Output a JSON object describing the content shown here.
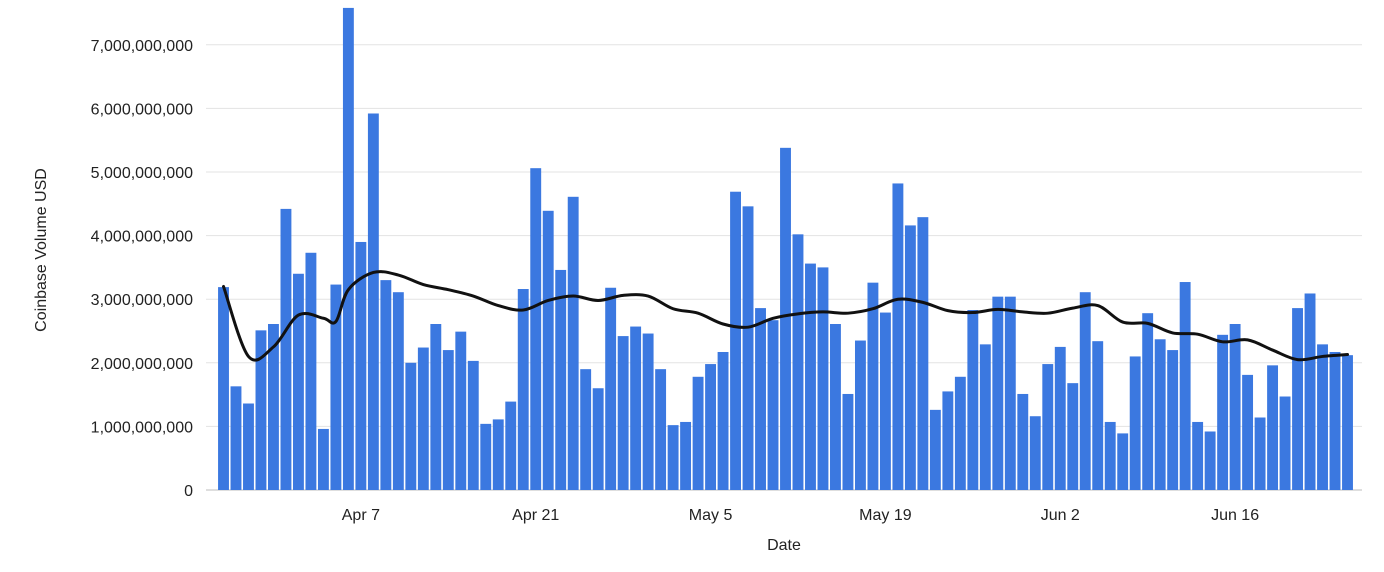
{
  "chart_data": {
    "type": "bar",
    "xlabel": "Date",
    "ylabel": "Coinbase Volume USD",
    "ylim": [
      0,
      7500000000
    ],
    "y_ticks": [
      0,
      1000000000,
      2000000000,
      3000000000,
      4000000000,
      5000000000,
      6000000000,
      7000000000
    ],
    "y_tick_labels": [
      "0",
      "1,000,000,000",
      "2,000,000,000",
      "3,000,000,000",
      "4,000,000,000",
      "5,000,000,000",
      "6,000,000,000",
      "7,000,000,000"
    ],
    "x_ticks": [
      {
        "label": "Apr 7",
        "date": "2019-04-07"
      },
      {
        "label": "Apr 21",
        "date": "2019-04-21"
      },
      {
        "label": "May 5",
        "date": "2019-05-05"
      },
      {
        "label": "May 19",
        "date": "2019-05-19"
      },
      {
        "label": "Jun 2",
        "date": "2019-06-02"
      },
      {
        "label": "Jun 16",
        "date": "2019-06-16"
      }
    ],
    "grid": true,
    "legend": "none",
    "colors": {
      "bars": "#3b78e0",
      "line": "#111111"
    },
    "series": [
      {
        "type": "bar",
        "x": [
          "2019-03-27",
          "2019-03-28",
          "2019-03-29",
          "2019-03-30",
          "2019-03-31",
          "2019-04-01",
          "2019-04-02",
          "2019-04-03",
          "2019-04-04",
          "2019-04-05",
          "2019-04-06",
          "2019-04-07",
          "2019-04-08",
          "2019-04-09",
          "2019-04-10",
          "2019-04-11",
          "2019-04-12",
          "2019-04-13",
          "2019-04-14",
          "2019-04-15",
          "2019-04-16",
          "2019-04-17",
          "2019-04-18",
          "2019-04-19",
          "2019-04-20",
          "2019-04-21",
          "2019-04-22",
          "2019-04-23",
          "2019-04-24",
          "2019-04-25",
          "2019-04-26",
          "2019-04-27",
          "2019-04-28",
          "2019-04-29",
          "2019-04-30",
          "2019-05-01",
          "2019-05-02",
          "2019-05-03",
          "2019-05-04",
          "2019-05-05",
          "2019-05-06",
          "2019-05-07",
          "2019-05-08",
          "2019-05-09",
          "2019-05-10",
          "2019-05-11",
          "2019-05-12",
          "2019-05-13",
          "2019-05-14",
          "2019-05-15",
          "2019-05-16",
          "2019-05-17",
          "2019-05-18",
          "2019-05-19",
          "2019-05-20",
          "2019-05-21",
          "2019-05-22",
          "2019-05-23",
          "2019-05-24",
          "2019-05-25",
          "2019-05-26",
          "2019-05-27",
          "2019-05-28",
          "2019-05-29",
          "2019-05-30",
          "2019-05-31",
          "2019-06-01",
          "2019-06-02",
          "2019-06-03",
          "2019-06-04",
          "2019-06-05",
          "2019-06-06",
          "2019-06-07",
          "2019-06-08",
          "2019-06-09",
          "2019-06-10",
          "2019-06-11",
          "2019-06-12",
          "2019-06-13",
          "2019-06-14",
          "2019-06-15",
          "2019-06-16",
          "2019-06-17",
          "2019-06-18",
          "2019-06-19",
          "2019-06-20",
          "2019-06-21",
          "2019-06-22",
          "2019-06-23",
          "2019-06-24",
          "2019-06-25"
        ],
        "values": [
          3190000000,
          1630000000,
          1360000000,
          2510000000,
          2610000000,
          4420000000,
          3400000000,
          3730000000,
          960000000,
          3230000000,
          7580000000,
          3900000000,
          5920000000,
          3300000000,
          3110000000,
          2000000000,
          2240000000,
          2610000000,
          2200000000,
          2490000000,
          2030000000,
          1040000000,
          1110000000,
          1390000000,
          3160000000,
          5060000000,
          4390000000,
          3460000000,
          4610000000,
          1900000000,
          1600000000,
          3180000000,
          2420000000,
          2570000000,
          2460000000,
          1900000000,
          1020000000,
          1070000000,
          1780000000,
          1980000000,
          2170000000,
          4690000000,
          4460000000,
          2860000000,
          2670000000,
          5380000000,
          4020000000,
          3560000000,
          3500000000,
          2610000000,
          1510000000,
          2350000000,
          3260000000,
          2790000000,
          4820000000,
          4160000000,
          4290000000,
          1260000000,
          1550000000,
          1780000000,
          2830000000,
          2290000000,
          3040000000,
          3040000000,
          1510000000,
          1160000000,
          1980000000,
          2250000000,
          1680000000,
          3110000000,
          2340000000,
          1070000000,
          890000000,
          2100000000,
          2780000000,
          2370000000,
          2200000000,
          3270000000,
          1070000000,
          920000000,
          2440000000,
          2610000000,
          1810000000,
          1140000000,
          1960000000,
          1470000000,
          2860000000,
          3090000000,
          2290000000,
          2170000000,
          2120000000
        ]
      },
      {
        "type": "line",
        "x": [
          "2019-03-27",
          "2019-03-29",
          "2019-03-31",
          "2019-04-02",
          "2019-04-04",
          "2019-04-05",
          "2019-04-06",
          "2019-04-08",
          "2019-04-10",
          "2019-04-12",
          "2019-04-14",
          "2019-04-16",
          "2019-04-18",
          "2019-04-20",
          "2019-04-22",
          "2019-04-24",
          "2019-04-26",
          "2019-04-28",
          "2019-04-30",
          "2019-05-02",
          "2019-05-04",
          "2019-05-06",
          "2019-05-08",
          "2019-05-10",
          "2019-05-12",
          "2019-05-14",
          "2019-05-16",
          "2019-05-18",
          "2019-05-20",
          "2019-05-22",
          "2019-05-24",
          "2019-05-26",
          "2019-05-28",
          "2019-05-30",
          "2019-06-01",
          "2019-06-03",
          "2019-06-05",
          "2019-06-07",
          "2019-06-09",
          "2019-06-11",
          "2019-06-13",
          "2019-06-15",
          "2019-06-17",
          "2019-06-19",
          "2019-06-21",
          "2019-06-23",
          "2019-06-25"
        ],
        "values": [
          3200000000,
          2100000000,
          2250000000,
          2750000000,
          2700000000,
          2650000000,
          3150000000,
          3420000000,
          3380000000,
          3230000000,
          3150000000,
          3050000000,
          2900000000,
          2830000000,
          2980000000,
          3050000000,
          2980000000,
          3060000000,
          3050000000,
          2850000000,
          2780000000,
          2610000000,
          2560000000,
          2700000000,
          2770000000,
          2800000000,
          2780000000,
          2850000000,
          3000000000,
          2950000000,
          2820000000,
          2790000000,
          2840000000,
          2800000000,
          2780000000,
          2860000000,
          2900000000,
          2640000000,
          2620000000,
          2470000000,
          2450000000,
          2330000000,
          2360000000,
          2200000000,
          2050000000,
          2100000000,
          2130000000
        ]
      }
    ]
  }
}
